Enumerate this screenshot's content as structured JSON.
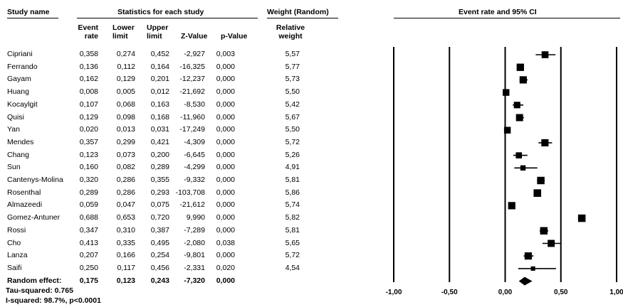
{
  "headers": {
    "study_name": "Study name",
    "statistics": "Statistics for each study",
    "weight": "Weight (Random)",
    "plot_title": "Event rate and 95% CI",
    "event_rate": [
      "Event",
      "rate"
    ],
    "lower_limit": [
      "Lower",
      "limit"
    ],
    "upper_limit": [
      "Upper",
      "limit"
    ],
    "z_value": "Z-Value",
    "p_value": "p-Value",
    "relative_weight": [
      "Relative",
      "weight"
    ]
  },
  "studies": [
    {
      "name": "Cipriani",
      "rate": "0,358",
      "lower": "0,274",
      "upper": "0,452",
      "z": "-2,927",
      "p": "0,003",
      "weight": "5,57"
    },
    {
      "name": "Ferrando",
      "rate": "0,136",
      "lower": "0,112",
      "upper": "0,164",
      "z": "-16,325",
      "p": "0,000",
      "weight": "5,77"
    },
    {
      "name": "Gayam",
      "rate": "0,162",
      "lower": "0,129",
      "upper": "0,201",
      "z": "-12,237",
      "p": "0,000",
      "weight": "5,73"
    },
    {
      "name": "Huang",
      "rate": "0,008",
      "lower": "0,005",
      "upper": "0,012",
      "z": "-21,692",
      "p": "0,000",
      "weight": "5,50"
    },
    {
      "name": "Kocaylgit",
      "rate": "0,107",
      "lower": "0,068",
      "upper": "0,163",
      "z": "-8,530",
      "p": "0,000",
      "weight": "5,42"
    },
    {
      "name": "Quisi",
      "rate": "0,129",
      "lower": "0,098",
      "upper": "0,168",
      "z": "-11,960",
      "p": "0,000",
      "weight": "5,67"
    },
    {
      "name": "Yan",
      "rate": "0,020",
      "lower": "0,013",
      "upper": "0,031",
      "z": "-17,249",
      "p": "0,000",
      "weight": "5,50"
    },
    {
      "name": "Mendes",
      "rate": "0,357",
      "lower": "0,299",
      "upper": "0,421",
      "z": "-4,309",
      "p": "0,000",
      "weight": "5,72"
    },
    {
      "name": "Chang",
      "rate": "0,123",
      "lower": "0,073",
      "upper": "0,200",
      "z": "-6,645",
      "p": "0,000",
      "weight": "5,26"
    },
    {
      "name": "Sun",
      "rate": "0,160",
      "lower": "0,082",
      "upper": "0,289",
      "z": "-4,299",
      "p": "0,000",
      "weight": "4,91"
    },
    {
      "name": "Cantenys-Molina",
      "rate": "0,320",
      "lower": "0,286",
      "upper": "0,355",
      "z": "-9,332",
      "p": "0,000",
      "weight": "5,81"
    },
    {
      "name": "Rosenthal",
      "rate": "0,289",
      "lower": "0,286",
      "upper": "0,293",
      "z": "-103,708",
      "p": "0,000",
      "weight": "5,86"
    },
    {
      "name": "Almazeedi",
      "rate": "0,059",
      "lower": "0,047",
      "upper": "0,075",
      "z": "-21,612",
      "p": "0,000",
      "weight": "5,74"
    },
    {
      "name": "Gomez-Antuner",
      "rate": "0,688",
      "lower": "0,653",
      "upper": "0,720",
      "z": "9,990",
      "p": "0,000",
      "weight": "5,82"
    },
    {
      "name": "Rossi",
      "rate": "0,347",
      "lower": "0,310",
      "upper": "0,387",
      "z": "-7,289",
      "p": "0,000",
      "weight": "5,81"
    },
    {
      "name": "Cho",
      "rate": "0,413",
      "lower": "0,335",
      "upper": "0,495",
      "z": "-2,080",
      "p": "0,038",
      "weight": "5,65"
    },
    {
      "name": "Lanza",
      "rate": "0,207",
      "lower": "0,166",
      "upper": "0,254",
      "z": "-9,801",
      "p": "0,000",
      "weight": "5,72"
    },
    {
      "name": "Saifi",
      "rate": "0,250",
      "lower": "0,117",
      "upper": "0,456",
      "z": "-2,331",
      "p": "0,020",
      "weight": "4,54"
    }
  ],
  "random_effect": {
    "name": "Random effect:",
    "rate": "0,175",
    "lower": "0,123",
    "upper": "0,243",
    "z": "-7,320",
    "p": "0,000"
  },
  "footer": {
    "tau_squared": "Tau-squared: 0.765",
    "i_squared": "I-squared: 98.7%, p<0.0001"
  },
  "chart_data": {
    "type": "forest",
    "title": "Event rate and 95% CI",
    "xlim": [
      -1.0,
      1.0
    ],
    "x_ticks": [
      -1.0,
      -0.5,
      0.0,
      0.5,
      1.0
    ],
    "x_tick_labels": [
      "-1,00",
      "-0,50",
      "0,00",
      "0,50",
      "1,00"
    ],
    "reference_lines": [
      -1.0,
      -0.5,
      0.0,
      0.5,
      1.0
    ],
    "points": [
      {
        "label": "Cipriani",
        "estimate": 0.358,
        "lower": 0.274,
        "upper": 0.452,
        "weight": 5.57
      },
      {
        "label": "Ferrando",
        "estimate": 0.136,
        "lower": 0.112,
        "upper": 0.164,
        "weight": 5.77
      },
      {
        "label": "Gayam",
        "estimate": 0.162,
        "lower": 0.129,
        "upper": 0.201,
        "weight": 5.73
      },
      {
        "label": "Huang",
        "estimate": 0.008,
        "lower": 0.005,
        "upper": 0.012,
        "weight": 5.5
      },
      {
        "label": "Kocaylgit",
        "estimate": 0.107,
        "lower": 0.068,
        "upper": 0.163,
        "weight": 5.42
      },
      {
        "label": "Quisi",
        "estimate": 0.129,
        "lower": 0.098,
        "upper": 0.168,
        "weight": 5.67
      },
      {
        "label": "Yan",
        "estimate": 0.02,
        "lower": 0.013,
        "upper": 0.031,
        "weight": 5.5
      },
      {
        "label": "Mendes",
        "estimate": 0.357,
        "lower": 0.299,
        "upper": 0.421,
        "weight": 5.72
      },
      {
        "label": "Chang",
        "estimate": 0.123,
        "lower": 0.073,
        "upper": 0.2,
        "weight": 5.26
      },
      {
        "label": "Sun",
        "estimate": 0.16,
        "lower": 0.082,
        "upper": 0.289,
        "weight": 4.91
      },
      {
        "label": "Cantenys-Molina",
        "estimate": 0.32,
        "lower": 0.286,
        "upper": 0.355,
        "weight": 5.81
      },
      {
        "label": "Rosenthal",
        "estimate": 0.289,
        "lower": 0.286,
        "upper": 0.293,
        "weight": 5.86
      },
      {
        "label": "Almazeedi",
        "estimate": 0.059,
        "lower": 0.047,
        "upper": 0.075,
        "weight": 5.74
      },
      {
        "label": "Gomez-Antuner",
        "estimate": 0.688,
        "lower": 0.653,
        "upper": 0.72,
        "weight": 5.82
      },
      {
        "label": "Rossi",
        "estimate": 0.347,
        "lower": 0.31,
        "upper": 0.387,
        "weight": 5.81
      },
      {
        "label": "Cho",
        "estimate": 0.413,
        "lower": 0.335,
        "upper": 0.495,
        "weight": 5.65
      },
      {
        "label": "Lanza",
        "estimate": 0.207,
        "lower": 0.166,
        "upper": 0.254,
        "weight": 5.72
      },
      {
        "label": "Saifi",
        "estimate": 0.25,
        "lower": 0.117,
        "upper": 0.456,
        "weight": 4.54
      }
    ],
    "summary": {
      "label": "Random effect",
      "estimate": 0.175,
      "lower": 0.123,
      "upper": 0.243
    }
  }
}
